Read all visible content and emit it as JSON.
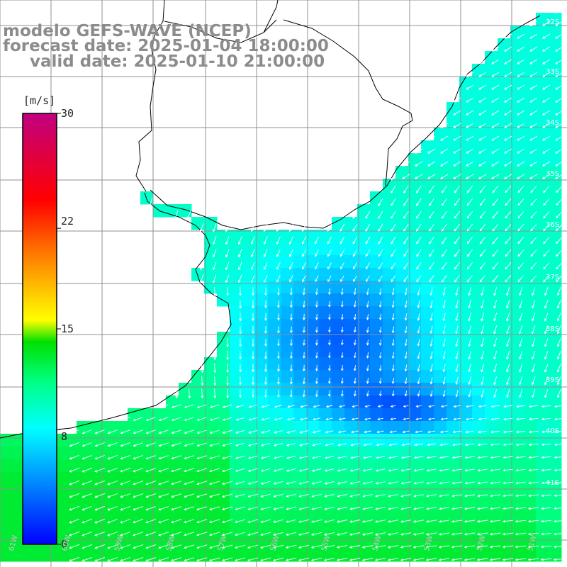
{
  "title": {
    "line1": "modelo GEFS-WAVE (NCEP)",
    "line2": "forecast date: 2025-01-04 18:00:00",
    "line3": "valid date: 2025-01-10 21:00:00"
  },
  "colorbar": {
    "unit": "[m/s]",
    "ticks": [
      "30",
      "22",
      "15",
      "8",
      "0"
    ],
    "tick_values": [
      30,
      22,
      15,
      8,
      0
    ],
    "min": 0,
    "max": 30,
    "colors": [
      "#0000ff",
      "#00aaff",
      "#00ffff",
      "#00ff00",
      "#ffff00",
      "#ff8000",
      "#ff0000",
      "#d00080"
    ]
  },
  "latitude_labels": [
    "32S",
    "33S",
    "34S",
    "35S",
    "36S",
    "37S",
    "38S",
    "39S",
    "40S",
    "41S"
  ],
  "longitude_labels": [
    "61W",
    "60W",
    "59W",
    "58W",
    "57W",
    "56W",
    "55W",
    "54W",
    "53W",
    "52W",
    "51W"
  ],
  "colors": {
    "background": "#ffffff",
    "land": "#ffffff",
    "grid": "#909090",
    "coastline": "#000000",
    "arrows": "#ffffff",
    "title_text": "#8c8c8c"
  }
}
